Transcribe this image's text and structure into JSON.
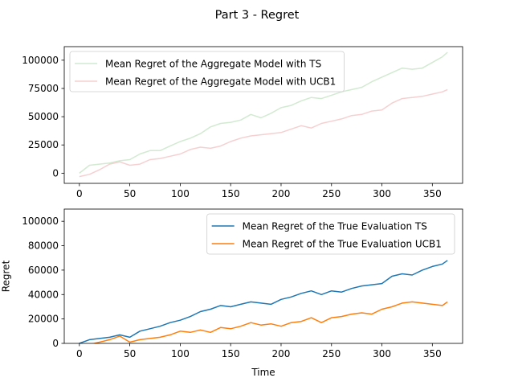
{
  "figure": {
    "title": "Part 3 - Regret"
  },
  "chart_data": [
    {
      "type": "line",
      "title": "",
      "xlabel": "",
      "ylabel": "",
      "xlim": [
        -15,
        380
      ],
      "ylim": [
        -9000,
        112000
      ],
      "xticks": [
        0,
        50,
        100,
        150,
        200,
        250,
        300,
        350
      ],
      "yticks": [
        0,
        25000,
        50000,
        75000,
        100000
      ],
      "legend_position": "top-left",
      "grid": false,
      "series": [
        {
          "name": "Mean Regret of the Aggregate Model with TS",
          "color": "#2ca02c",
          "opacity": 0.22,
          "x": [
            0,
            10,
            20,
            30,
            40,
            50,
            60,
            70,
            80,
            90,
            100,
            110,
            120,
            130,
            140,
            150,
            160,
            170,
            180,
            190,
            200,
            210,
            220,
            230,
            240,
            250,
            260,
            270,
            280,
            290,
            300,
            310,
            320,
            330,
            340,
            350,
            360,
            365
          ],
          "y": [
            0,
            7000,
            8000,
            9000,
            11000,
            12000,
            17000,
            20000,
            20000,
            24000,
            28000,
            31000,
            35000,
            41000,
            44000,
            45000,
            47000,
            52000,
            49000,
            53000,
            58000,
            60000,
            64000,
            67000,
            66000,
            69000,
            72000,
            74000,
            76000,
            81000,
            85000,
            89000,
            93000,
            92000,
            93000,
            98000,
            103000,
            107000
          ]
        },
        {
          "name": "Mean Regret of the Aggregate Model with UCB1",
          "color": "#d62728",
          "opacity": 0.22,
          "x": [
            0,
            10,
            20,
            30,
            40,
            50,
            60,
            70,
            80,
            90,
            100,
            110,
            120,
            130,
            140,
            150,
            160,
            170,
            180,
            190,
            200,
            210,
            220,
            230,
            240,
            250,
            260,
            270,
            280,
            290,
            300,
            310,
            320,
            330,
            340,
            350,
            360,
            365
          ],
          "y": [
            -3000,
            -1000,
            3000,
            8000,
            10000,
            7000,
            8000,
            12000,
            13000,
            15000,
            17000,
            21000,
            23000,
            22000,
            24000,
            28000,
            31000,
            33000,
            34000,
            35000,
            36000,
            39000,
            42000,
            40000,
            44000,
            46000,
            48000,
            51000,
            52000,
            55000,
            56000,
            62000,
            66000,
            67000,
            68000,
            70000,
            72000,
            74000
          ]
        }
      ]
    },
    {
      "type": "line",
      "title": "",
      "xlabel": "Time",
      "ylabel": "Regret",
      "xlim": [
        -15,
        380
      ],
      "ylim": [
        0,
        110000
      ],
      "xticks": [
        0,
        50,
        100,
        150,
        200,
        250,
        300,
        350
      ],
      "yticks": [
        0,
        20000,
        40000,
        60000,
        80000,
        100000
      ],
      "legend_position": "top-right",
      "grid": false,
      "series": [
        {
          "name": "Mean Regret of the True Evaluation TS",
          "color": "#1f77b4",
          "opacity": 1,
          "x": [
            0,
            10,
            20,
            30,
            40,
            50,
            60,
            70,
            80,
            90,
            100,
            110,
            120,
            130,
            140,
            150,
            160,
            170,
            180,
            190,
            200,
            210,
            220,
            230,
            240,
            250,
            260,
            270,
            280,
            290,
            300,
            310,
            320,
            330,
            340,
            350,
            360,
            365
          ],
          "y": [
            0,
            3000,
            4000,
            5000,
            7000,
            5000,
            10000,
            12000,
            14000,
            17000,
            19000,
            22000,
            26000,
            28000,
            31000,
            30000,
            32000,
            34000,
            33000,
            32000,
            36000,
            38000,
            41000,
            43000,
            40000,
            43000,
            42000,
            45000,
            47000,
            48000,
            49000,
            55000,
            57000,
            56000,
            60000,
            63000,
            65000,
            68000
          ]
        },
        {
          "name": "Mean Regret of the True Evaluation UCB1",
          "color": "#ff7f0e",
          "opacity": 1,
          "x": [
            0,
            10,
            20,
            30,
            40,
            50,
            60,
            70,
            80,
            90,
            100,
            110,
            120,
            130,
            140,
            150,
            160,
            170,
            180,
            190,
            200,
            210,
            220,
            230,
            240,
            250,
            260,
            270,
            280,
            290,
            300,
            310,
            320,
            330,
            340,
            350,
            360,
            365
          ],
          "y": [
            -2000,
            -1000,
            1000,
            3000,
            6000,
            1000,
            3000,
            4000,
            5000,
            7000,
            10000,
            9000,
            11000,
            9000,
            13000,
            12000,
            14000,
            17000,
            15000,
            16000,
            14000,
            17000,
            18000,
            21000,
            17000,
            21000,
            22000,
            24000,
            25000,
            24000,
            28000,
            30000,
            33000,
            34000,
            33000,
            32000,
            31000,
            34000
          ]
        }
      ]
    }
  ]
}
